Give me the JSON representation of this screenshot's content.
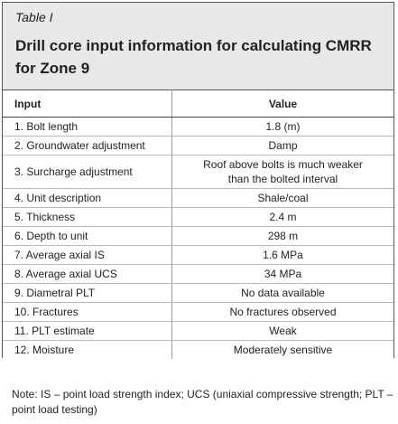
{
  "header": {
    "label": "Table I",
    "title": "Drill core input information for calculating CMRR for Zone 9"
  },
  "table": {
    "columns": [
      "Input",
      "Value"
    ],
    "rows": [
      [
        "1. Bolt length",
        "1.8 (m)"
      ],
      [
        "2. Groundwater adjustment",
        "Damp"
      ],
      [
        "3. Surcharge adjustment",
        "Roof above bolts is much weaker than the bolted interval"
      ],
      [
        "4. Unit description",
        "Shale/coal"
      ],
      [
        "5. Thickness",
        "2.4 m"
      ],
      [
        "6. Depth to unit",
        "298 m"
      ],
      [
        "7. Average axial IS",
        "1.6 MPa"
      ],
      [
        "8. Average axial UCS",
        "34 MPa"
      ],
      [
        "9. Diametral PLT",
        "No data available"
      ],
      [
        "10. Fractures",
        "No fractures observed"
      ],
      [
        "11. PLT estimate",
        "Weak"
      ],
      [
        "12. Moisture",
        "Moderately sensitive"
      ]
    ]
  },
  "note": "Note: IS – point load strength index; UCS (uniaxial compressive strength; PLT – point load testing)"
}
